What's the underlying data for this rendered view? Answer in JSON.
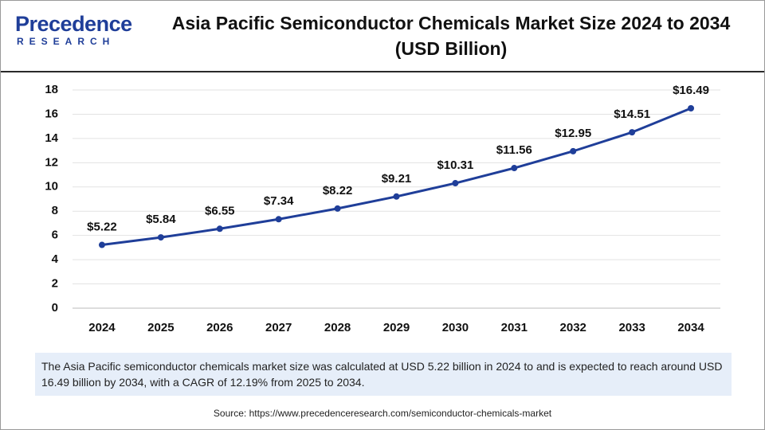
{
  "header": {
    "logo_top": "Precedence",
    "logo_bottom": "RESEARCH"
  },
  "chart_data": {
    "type": "line",
    "title": "Asia Pacific Semiconductor Chemicals Market Size 2024 to 2034 (USD Billion)",
    "categories": [
      "2024",
      "2025",
      "2026",
      "2027",
      "2028",
      "2029",
      "2030",
      "2031",
      "2032",
      "2033",
      "2034"
    ],
    "values": [
      5.22,
      5.84,
      6.55,
      7.34,
      8.22,
      9.21,
      10.31,
      11.56,
      12.95,
      14.51,
      16.49
    ],
    "value_labels": [
      "$5.22",
      "$5.84",
      "$6.55",
      "$7.34",
      "$8.22",
      "$9.21",
      "$10.31",
      "$11.56",
      "$12.95",
      "$14.51",
      "$16.49"
    ],
    "color": "#1f3e99",
    "ylim": [
      0,
      18
    ],
    "yticks": [
      0,
      2,
      4,
      6,
      8,
      10,
      12,
      14,
      16,
      18
    ],
    "grid": true
  },
  "description": "The Asia Pacific semiconductor chemicals market size was calculated at USD 5.22 billion in 2024 to and is expected to reach around USD 16.49 billion by 2034, with a CAGR of 12.19% from 2025 to 2034.",
  "source": "Source: https://www.precedenceresearch.com/semiconductor-chemicals-market"
}
